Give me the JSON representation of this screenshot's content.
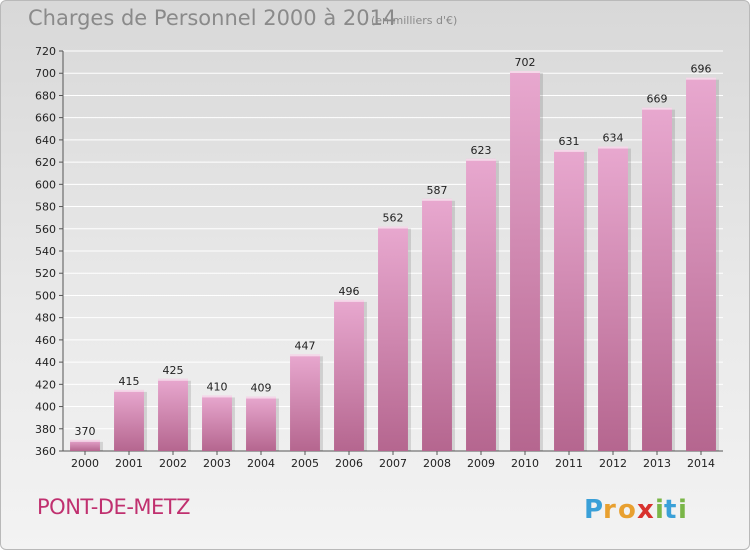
{
  "header": {
    "title": "Charges de Personnel 2000 à 2014",
    "subtitle": "(en milliers d'€)"
  },
  "footer": {
    "city": "PONT-DE-METZ",
    "logo_text": "Proxiti"
  },
  "colors": {
    "bar_top": "#e8a8cf",
    "bar_bottom": "#b5668f",
    "city": "#c0306f",
    "grid": "#ffffff"
  },
  "chart_data": {
    "type": "bar",
    "title": "Charges de Personnel 2000 à 2014",
    "subtitle": "(en milliers d'€)",
    "xlabel": "",
    "ylabel": "",
    "categories": [
      "2000",
      "2001",
      "2002",
      "2003",
      "2004",
      "2005",
      "2006",
      "2007",
      "2008",
      "2009",
      "2010",
      "2011",
      "2012",
      "2013",
      "2014"
    ],
    "values": [
      370,
      415,
      425,
      410,
      409,
      447,
      496,
      562,
      587,
      623,
      702,
      631,
      634,
      669,
      696
    ],
    "ylim": [
      360,
      720
    ],
    "yticks": [
      360,
      380,
      400,
      420,
      440,
      460,
      480,
      500,
      520,
      540,
      560,
      580,
      600,
      620,
      640,
      660,
      680,
      700,
      720
    ],
    "grid": true
  }
}
